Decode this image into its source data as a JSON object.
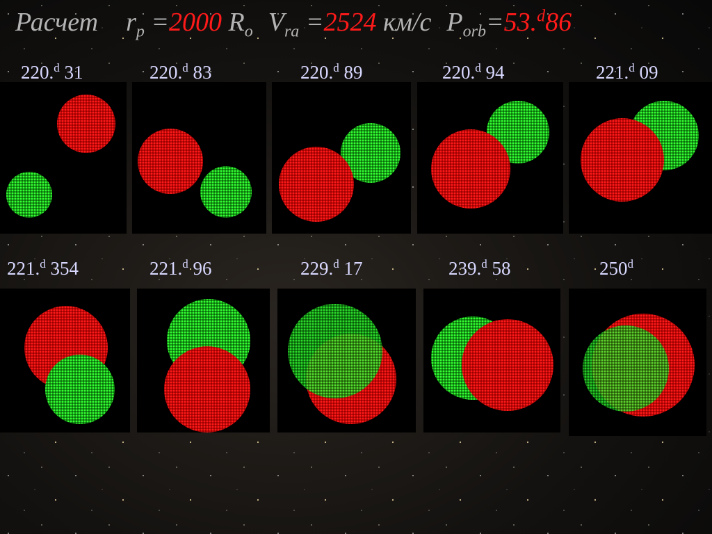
{
  "title": {
    "word": "Расчет",
    "r": "r",
    "r_sub": "p",
    "eq1": "=",
    "r_value": "2000",
    "r_unit": "R",
    "r_unit_sub": "o",
    "v": "V",
    "v_sub": "ra",
    "eq2": "=",
    "v_value": "2524",
    "v_unit": "км/с",
    "p": "P",
    "p_sub": "orb",
    "eq3": "=",
    "p_value": "53.",
    "p_sup": "d",
    "p_rest": "86"
  },
  "frames": [
    {
      "main": "220.",
      "sup": "d",
      "rest": "31"
    },
    {
      "main": "220.",
      "sup": "d",
      "rest": "83"
    },
    {
      "main": "220.",
      "sup": "d",
      "rest": "89"
    },
    {
      "main": "220.",
      "sup": "d",
      "rest": "94"
    },
    {
      "main": "221.",
      "sup": "d",
      "rest": "09"
    },
    {
      "main": "221.",
      "sup": "d",
      "rest": "354"
    },
    {
      "main": "221.",
      "sup": "d",
      "rest": "96"
    },
    {
      "main": "229.",
      "sup": "d",
      "rest": "17"
    },
    {
      "main": "239.",
      "sup": "d",
      "rest": "58"
    },
    {
      "main": "250",
      "sup": "d"
    }
  ]
}
